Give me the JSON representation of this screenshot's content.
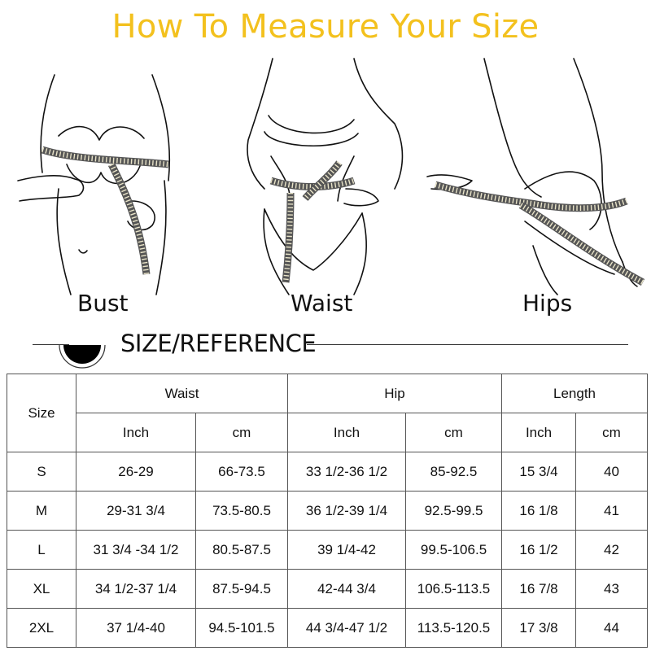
{
  "title": "How To Measure Your Size",
  "captions": {
    "bust": "Bust",
    "waist": "Waist",
    "hips": "Hips"
  },
  "section_title": "SIZE/REFERENCE",
  "icons": {
    "section": "half-circle-icon"
  },
  "colors": {
    "title": "#f3c11e",
    "text": "#111111",
    "border": "#555555"
  },
  "table": {
    "size_header": "Size",
    "groups": [
      "Waist",
      "Hip",
      "Length"
    ],
    "units": [
      "Inch",
      "cm",
      "Inch",
      "cm",
      "Inch",
      "cm"
    ],
    "rows": [
      {
        "size": "S",
        "waist_in": "26-29",
        "waist_cm": "66-73.5",
        "hip_in": "33 1/2-36 1/2",
        "hip_cm": "85-92.5",
        "len_in": "15 3/4",
        "len_cm": "40"
      },
      {
        "size": "M",
        "waist_in": "29-31 3/4",
        "waist_cm": "73.5-80.5",
        "hip_in": "36 1/2-39 1/4",
        "hip_cm": "92.5-99.5",
        "len_in": "16 1/8",
        "len_cm": "41"
      },
      {
        "size": "L",
        "waist_in": "31 3/4 -34 1/2",
        "waist_cm": "80.5-87.5",
        "hip_in": "39 1/4-42",
        "hip_cm": "99.5-106.5",
        "len_in": "16 1/2",
        "len_cm": "42"
      },
      {
        "size": "XL",
        "waist_in": "34 1/2-37 1/4",
        "waist_cm": "87.5-94.5",
        "hip_in": "42-44 3/4",
        "hip_cm": "106.5-113.5",
        "len_in": "16 7/8",
        "len_cm": "43"
      },
      {
        "size": "2XL",
        "waist_in": "37 1/4-40",
        "waist_cm": "94.5-101.5",
        "hip_in": "44 3/4-47 1/2",
        "hip_cm": "113.5-120.5",
        "len_in": "17 3/8",
        "len_cm": "44"
      }
    ]
  }
}
